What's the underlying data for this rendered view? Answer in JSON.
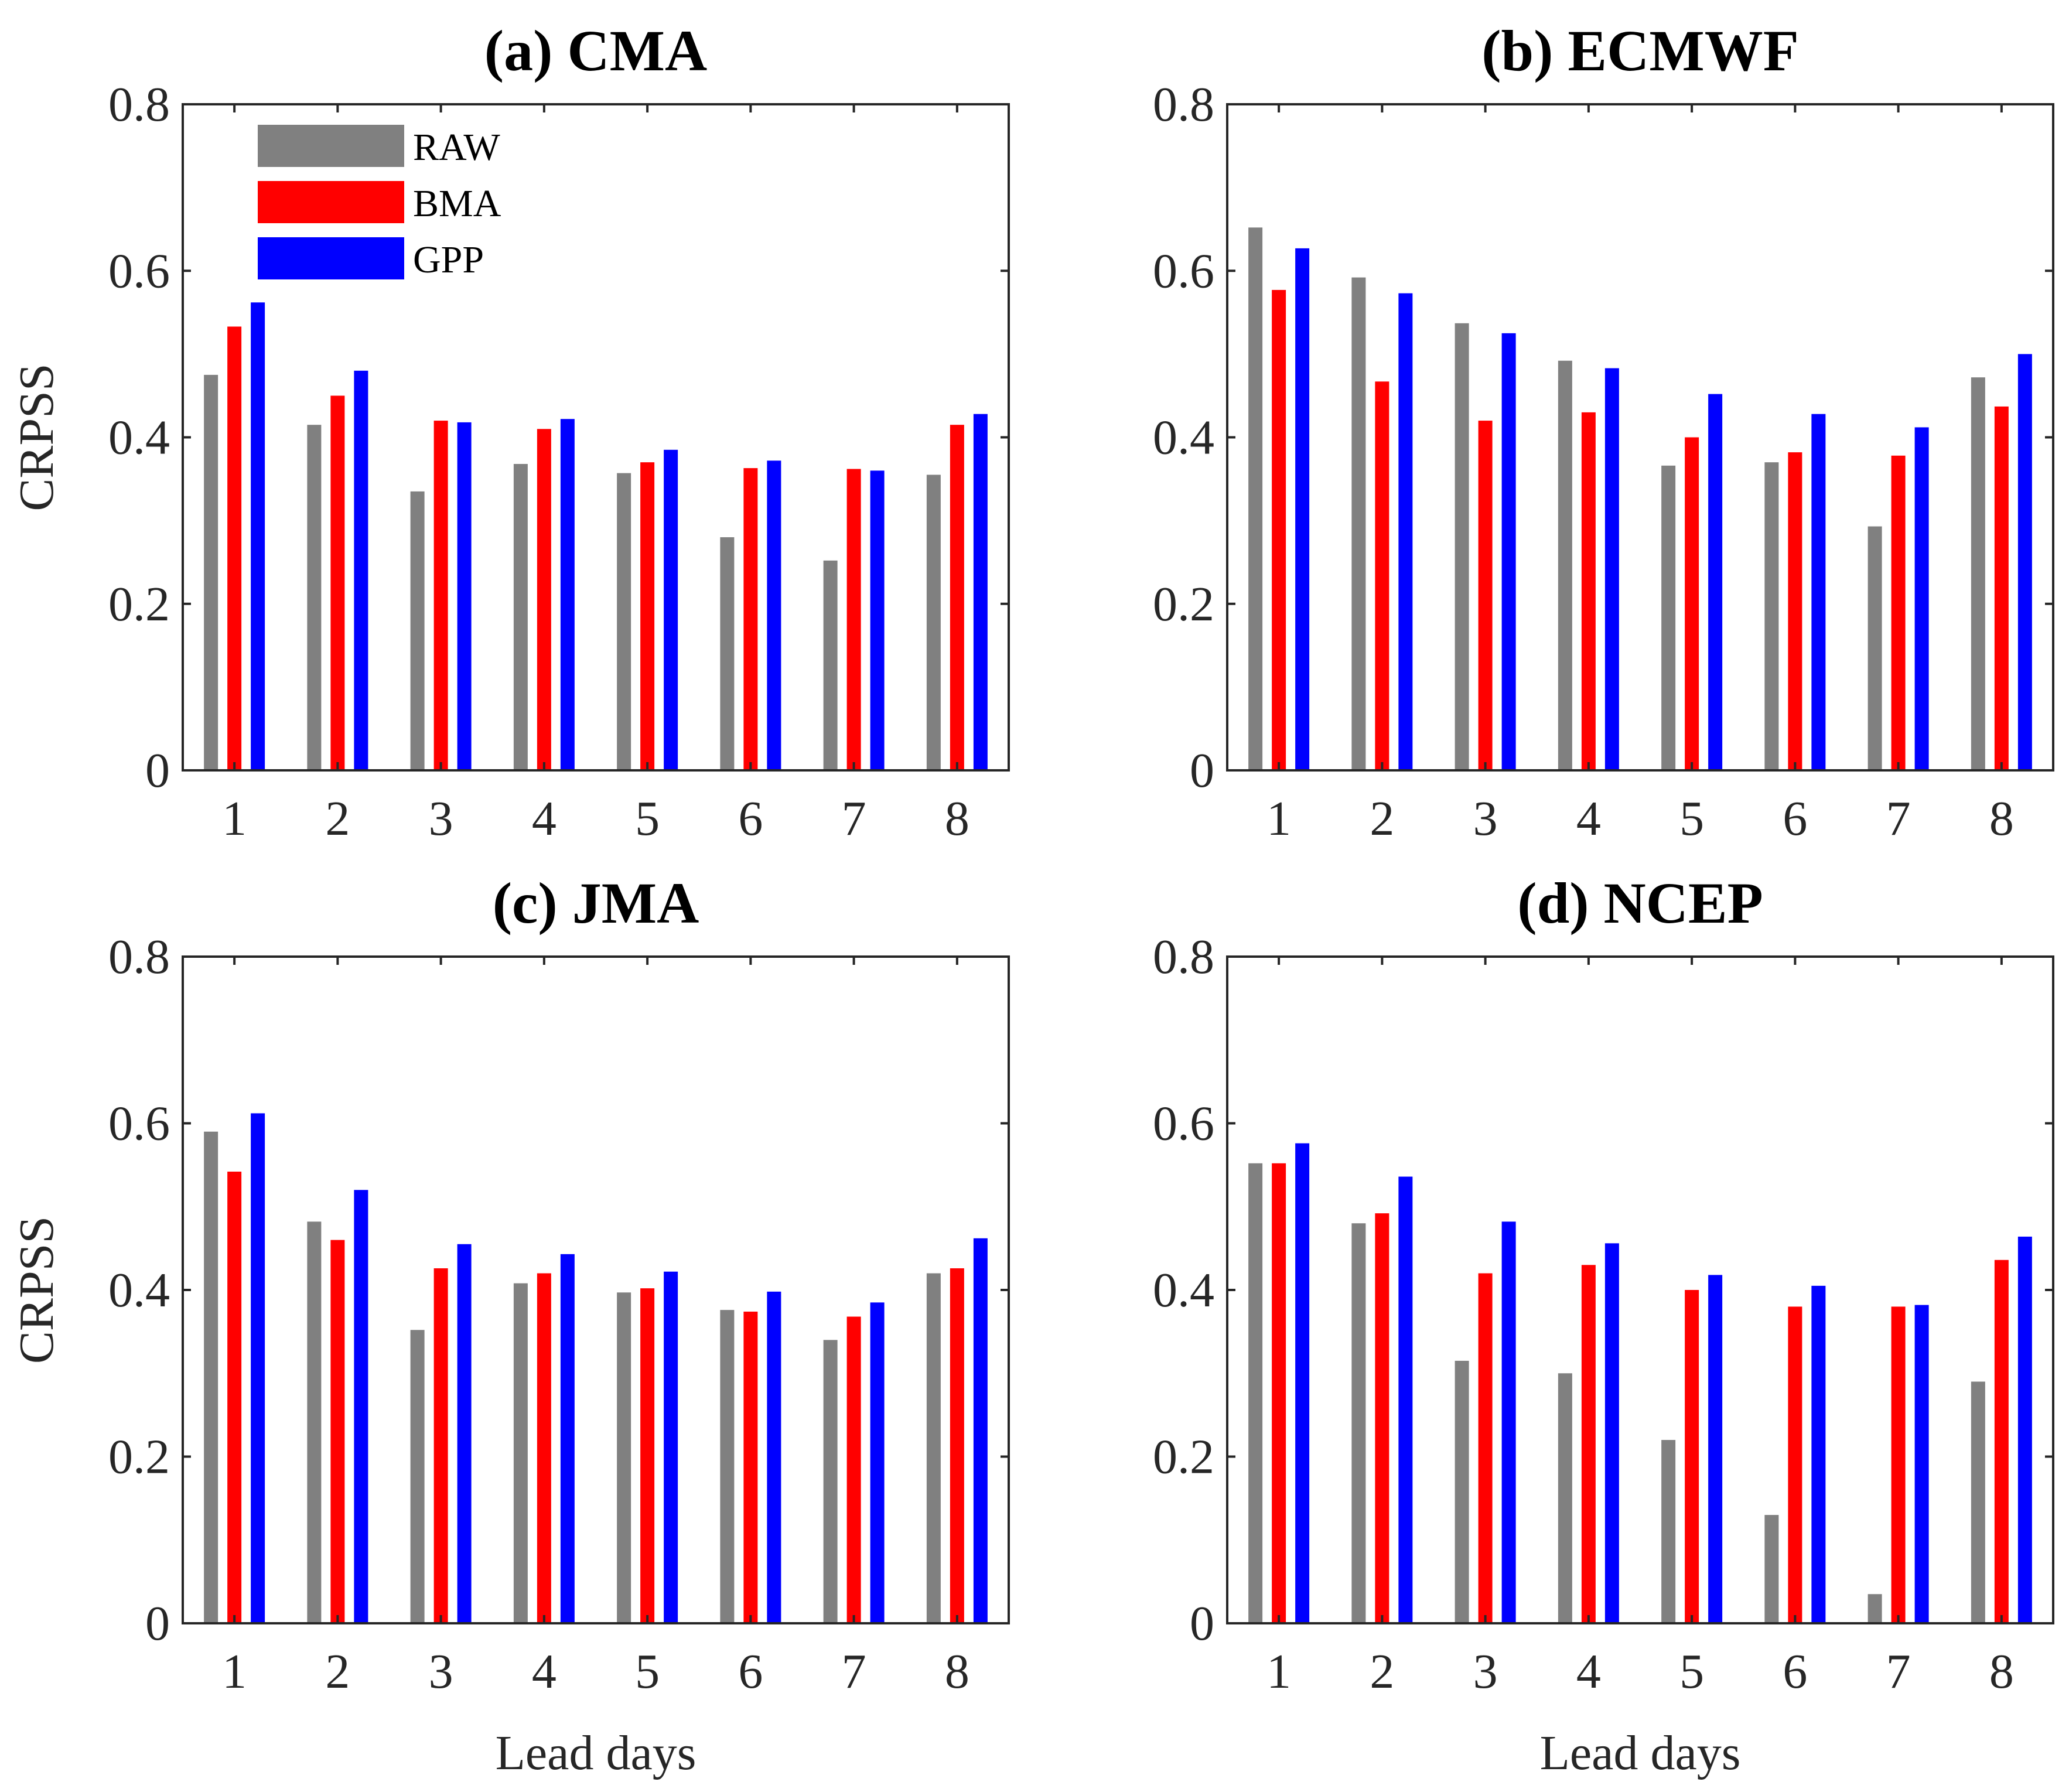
{
  "figure": {
    "legend_panel": 0,
    "legend_placement": "top-left"
  },
  "chart_data": [
    {
      "type": "bar",
      "title": "(a) CMA",
      "xlabel": "",
      "ylabel": "CRPSS",
      "ylim": [
        0,
        0.8
      ],
      "yticks": [
        "0",
        "0.2",
        "0.4",
        "0.6",
        "0.8"
      ],
      "categories": [
        "1",
        "2",
        "3",
        "4",
        "5",
        "6",
        "7",
        "8"
      ],
      "series": [
        {
          "name": "RAW",
          "color": "#808080",
          "values": [
            0.475,
            0.415,
            0.335,
            0.368,
            0.357,
            0.28,
            0.252,
            0.355
          ]
        },
        {
          "name": "BMA",
          "color": "#ff0000",
          "values": [
            0.533,
            0.45,
            0.42,
            0.41,
            0.37,
            0.363,
            0.362,
            0.415
          ]
        },
        {
          "name": "GPP",
          "color": "#0000ff",
          "values": [
            0.562,
            0.48,
            0.418,
            0.422,
            0.385,
            0.372,
            0.36,
            0.428
          ]
        }
      ]
    },
    {
      "type": "bar",
      "title": "(b) ECMWF",
      "xlabel": "",
      "ylabel": "",
      "ylim": [
        0,
        0.8
      ],
      "yticks": [
        "0",
        "0.2",
        "0.4",
        "0.6",
        "0.8"
      ],
      "categories": [
        "1",
        "2",
        "3",
        "4",
        "5",
        "6",
        "7",
        "8"
      ],
      "series": [
        {
          "name": "RAW",
          "color": "#808080",
          "values": [
            0.652,
            0.592,
            0.537,
            0.492,
            0.366,
            0.37,
            0.293,
            0.472
          ]
        },
        {
          "name": "BMA",
          "color": "#ff0000",
          "values": [
            0.577,
            0.467,
            0.42,
            0.43,
            0.4,
            0.382,
            0.378,
            0.437
          ]
        },
        {
          "name": "GPP",
          "color": "#0000ff",
          "values": [
            0.627,
            0.573,
            0.525,
            0.483,
            0.452,
            0.428,
            0.412,
            0.5
          ]
        }
      ]
    },
    {
      "type": "bar",
      "title": "(c) JMA",
      "xlabel": "Lead days",
      "ylabel": "CRPSS",
      "ylim": [
        0,
        0.8
      ],
      "yticks": [
        "0",
        "0.2",
        "0.4",
        "0.6",
        "0.8"
      ],
      "categories": [
        "1",
        "2",
        "3",
        "4",
        "5",
        "6",
        "7",
        "8"
      ],
      "series": [
        {
          "name": "RAW",
          "color": "#808080",
          "values": [
            0.59,
            0.482,
            0.352,
            0.408,
            0.397,
            0.376,
            0.34,
            0.42
          ]
        },
        {
          "name": "BMA",
          "color": "#ff0000",
          "values": [
            0.542,
            0.46,
            0.426,
            0.42,
            0.402,
            0.374,
            0.368,
            0.426
          ]
        },
        {
          "name": "GPP",
          "color": "#0000ff",
          "values": [
            0.612,
            0.52,
            0.455,
            0.443,
            0.422,
            0.398,
            0.385,
            0.462
          ]
        }
      ]
    },
    {
      "type": "bar",
      "title": "(d) NCEP",
      "xlabel": "Lead days",
      "ylabel": "",
      "ylim": [
        0,
        0.8
      ],
      "yticks": [
        "0",
        "0.2",
        "0.4",
        "0.6",
        "0.8"
      ],
      "categories": [
        "1",
        "2",
        "3",
        "4",
        "5",
        "6",
        "7",
        "8"
      ],
      "series": [
        {
          "name": "RAW",
          "color": "#808080",
          "values": [
            0.552,
            0.48,
            0.315,
            0.3,
            0.22,
            0.13,
            0.035,
            0.29
          ]
        },
        {
          "name": "BMA",
          "color": "#ff0000",
          "values": [
            0.552,
            0.492,
            0.42,
            0.43,
            0.4,
            0.38,
            0.38,
            0.436
          ]
        },
        {
          "name": "GPP",
          "color": "#0000ff",
          "values": [
            0.576,
            0.536,
            0.482,
            0.456,
            0.418,
            0.405,
            0.382,
            0.464
          ]
        }
      ]
    }
  ]
}
